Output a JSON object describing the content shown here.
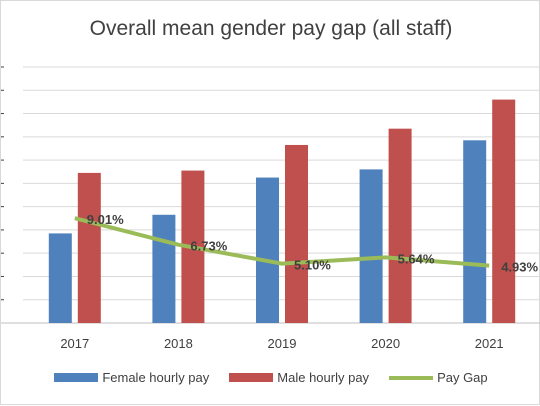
{
  "chart_data": {
    "type": "bar",
    "title": "Overall mean gender pay gap (all staff)",
    "categories": [
      "2017",
      "2018",
      "2019",
      "2020",
      "2021"
    ],
    "series": [
      {
        "name": "Female hourly pay",
        "kind": "bar",
        "color": "#4f81bd",
        "values": [
          7.7,
          9.3,
          12.5,
          13.2,
          15.7
        ]
      },
      {
        "name": "Male hourly pay",
        "kind": "bar",
        "color": "#c0504d",
        "values": [
          12.9,
          13.1,
          15.3,
          16.7,
          19.2
        ]
      },
      {
        "name": "Pay Gap",
        "kind": "line",
        "color": "#9bbb59",
        "values": [
          9.01,
          6.73,
          5.1,
          5.64,
          4.93
        ],
        "labels": [
          "9.01%",
          "6.73%",
          "5.10%",
          "5.64%",
          "4.93%"
        ]
      }
    ],
    "ylim": [
      0,
      22
    ],
    "grid": true,
    "legend_position": "bottom"
  }
}
